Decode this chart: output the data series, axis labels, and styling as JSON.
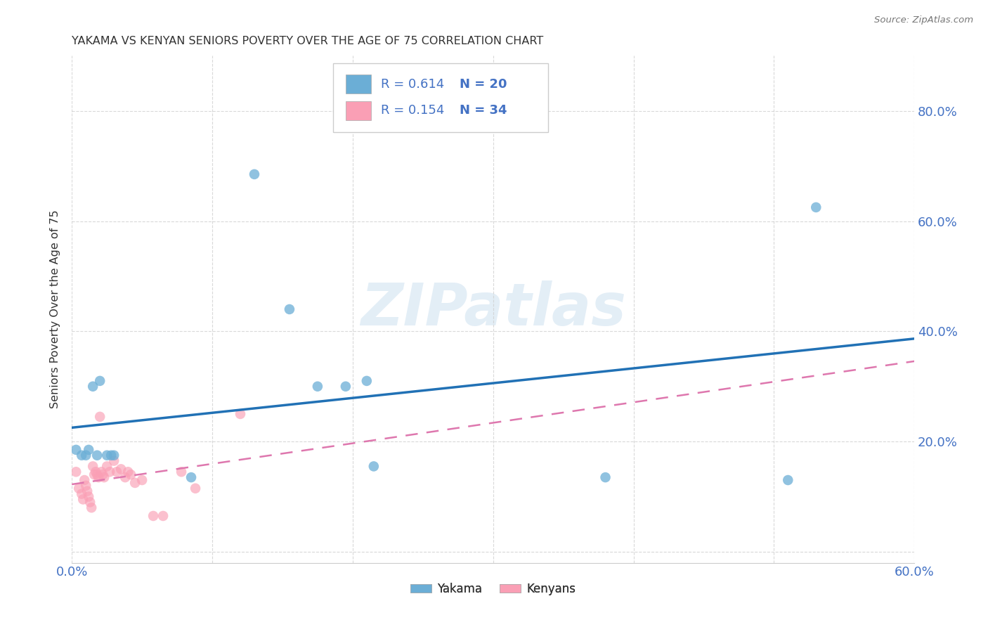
{
  "title": "YAKAMA VS KENYAN SENIORS POVERTY OVER THE AGE OF 75 CORRELATION CHART",
  "source": "Source: ZipAtlas.com",
  "ylabel": "Seniors Poverty Over the Age of 75",
  "xlim": [
    0.0,
    0.6
  ],
  "ylim": [
    -0.02,
    0.9
  ],
  "x_ticks": [
    0.0,
    0.1,
    0.2,
    0.3,
    0.4,
    0.5,
    0.6
  ],
  "x_tick_labels": [
    "0.0%",
    "",
    "",
    "",
    "",
    "",
    "60.0%"
  ],
  "y_ticks": [
    0.0,
    0.2,
    0.4,
    0.6,
    0.8
  ],
  "y_tick_labels": [
    "",
    "20.0%",
    "40.0%",
    "60.0%",
    "80.0%"
  ],
  "watermark": "ZIPatlas",
  "yakama_color": "#6baed6",
  "kenyans_color": "#fa9fb5",
  "yakama_line_color": "#2171b5",
  "kenyans_line_color": "#de77ae",
  "legend_R_yakama": "R = 0.614",
  "legend_N_yakama": "N = 20",
  "legend_R_kenyans": "R = 0.154",
  "legend_N_kenyans": "N = 34",
  "legend_color": "#4472c4",
  "yakama_x": [
    0.003,
    0.007,
    0.01,
    0.012,
    0.015,
    0.018,
    0.02,
    0.025,
    0.028,
    0.03,
    0.085,
    0.13,
    0.155,
    0.175,
    0.195,
    0.21,
    0.215,
    0.38,
    0.51,
    0.53
  ],
  "yakama_y": [
    0.185,
    0.175,
    0.175,
    0.185,
    0.3,
    0.175,
    0.31,
    0.175,
    0.175,
    0.175,
    0.135,
    0.685,
    0.44,
    0.3,
    0.3,
    0.31,
    0.155,
    0.135,
    0.13,
    0.625
  ],
  "kenyans_x": [
    0.003,
    0.005,
    0.007,
    0.008,
    0.009,
    0.01,
    0.011,
    0.012,
    0.013,
    0.014,
    0.015,
    0.016,
    0.017,
    0.018,
    0.019,
    0.02,
    0.021,
    0.022,
    0.023,
    0.025,
    0.027,
    0.03,
    0.032,
    0.035,
    0.038,
    0.04,
    0.042,
    0.045,
    0.05,
    0.058,
    0.065,
    0.078,
    0.088,
    0.12
  ],
  "kenyans_y": [
    0.145,
    0.115,
    0.105,
    0.095,
    0.13,
    0.12,
    0.11,
    0.1,
    0.09,
    0.08,
    0.155,
    0.14,
    0.145,
    0.14,
    0.135,
    0.245,
    0.145,
    0.14,
    0.135,
    0.155,
    0.145,
    0.165,
    0.145,
    0.15,
    0.135,
    0.145,
    0.14,
    0.125,
    0.13,
    0.065,
    0.065,
    0.145,
    0.115,
    0.25
  ],
  "background_color": "#ffffff",
  "grid_color": "#d0d0d0"
}
